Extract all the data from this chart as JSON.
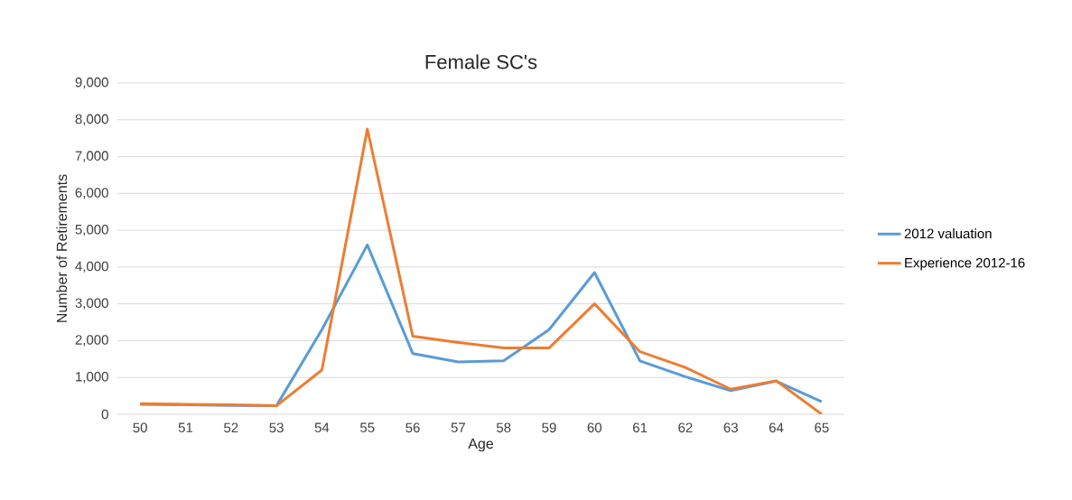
{
  "chart_data": {
    "type": "line",
    "title": "Female SC's",
    "xlabel": "Age",
    "ylabel": "Number of Retirements",
    "categories": [
      "50",
      "51",
      "52",
      "53",
      "54",
      "55",
      "56",
      "57",
      "58",
      "59",
      "60",
      "61",
      "62",
      "63",
      "64",
      "65"
    ],
    "series": [
      {
        "name": "2012 valuation",
        "color": "#5b9bd5",
        "values": [
          270,
          260,
          240,
          230,
          2300,
          4600,
          1650,
          1420,
          1450,
          2300,
          3850,
          1450,
          1020,
          640,
          900,
          340
        ]
      },
      {
        "name": "Experience 2012-16",
        "color": "#ed7d31",
        "values": [
          290,
          270,
          260,
          230,
          1200,
          7750,
          2120,
          1950,
          1800,
          1800,
          3000,
          1700,
          1270,
          680,
          910,
          0
        ]
      }
    ],
    "ylim": [
      0,
      9000
    ],
    "yticks": [
      0,
      {
        "value": 1000,
        "label": "1,000"
      },
      {
        "value": 2000,
        "label": "2,000"
      },
      {
        "value": 3000,
        "label": "3,000"
      },
      {
        "value": 4000,
        "label": "4,000"
      },
      {
        "value": 5000,
        "label": "5,000"
      },
      {
        "value": 6000,
        "label": "6,000"
      },
      {
        "value": 7000,
        "label": "7,000"
      },
      {
        "value": 8000,
        "label": "8,000"
      },
      {
        "value": 9000,
        "label": "9,000"
      }
    ],
    "grid": "y",
    "legend": "right",
    "marker": "none",
    "line_style": "solid"
  }
}
